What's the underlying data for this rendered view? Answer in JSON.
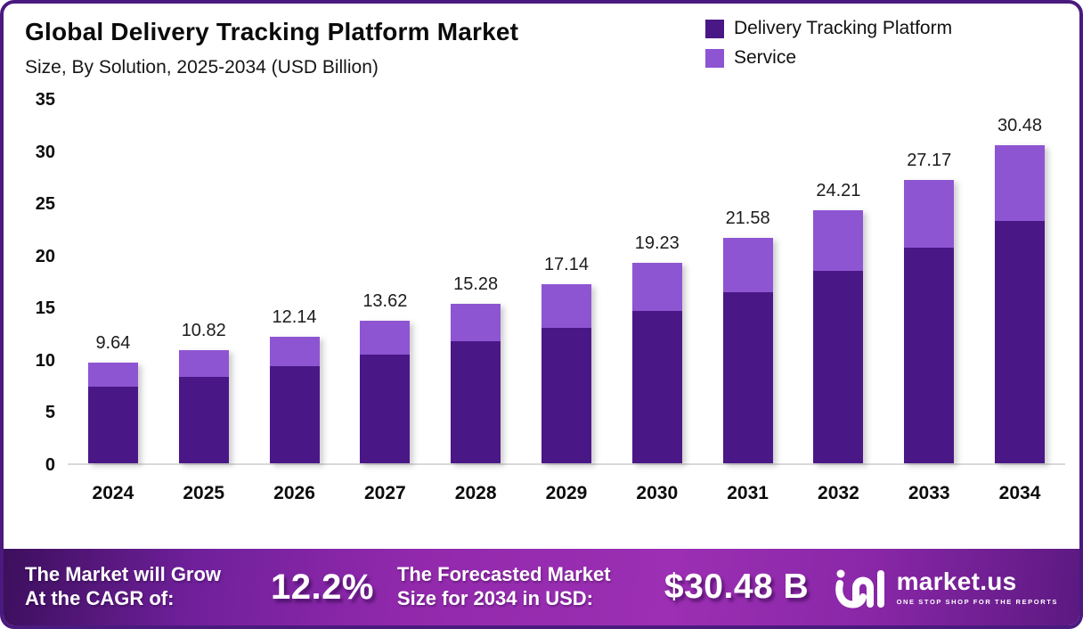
{
  "header": {
    "title": "Global Delivery Tracking Platform Market",
    "subtitle": "Size, By Solution, 2025-2034 (USD Billion)"
  },
  "legend": {
    "items": [
      {
        "label": "Delivery Tracking Platform",
        "color": "#4A1787"
      },
      {
        "label": "Service",
        "color": "#8E55D2"
      }
    ]
  },
  "chart_data": {
    "type": "bar",
    "stacked": true,
    "title": "Global Delivery Tracking Platform Market Size, By Solution, 2025-2034 (USD Billion)",
    "categories": [
      "2024",
      "2025",
      "2026",
      "2027",
      "2028",
      "2029",
      "2030",
      "2031",
      "2032",
      "2033",
      "2034"
    ],
    "series": [
      {
        "name": "Delivery Tracking Platform",
        "color": "#4A1787",
        "values": [
          7.35,
          8.3,
          9.3,
          10.42,
          11.68,
          13.0,
          14.62,
          16.38,
          18.4,
          20.62,
          23.22
        ]
      },
      {
        "name": "Service",
        "color": "#8E55D2",
        "values": [
          2.29,
          2.52,
          2.84,
          3.2,
          3.6,
          4.14,
          4.61,
          5.2,
          5.81,
          6.55,
          7.26
        ]
      }
    ],
    "totals": [
      9.64,
      10.82,
      12.14,
      13.62,
      15.28,
      17.14,
      19.23,
      21.58,
      24.21,
      27.17,
      30.48
    ],
    "total_labels": [
      "9.64",
      "10.82",
      "12.14",
      "13.62",
      "15.28",
      "17.14",
      "19.23",
      "21.58",
      "24.21",
      "27.17",
      "30.48"
    ],
    "xlabel": "",
    "ylabel": "",
    "ylim": [
      0,
      35
    ],
    "yticks": [
      35,
      30,
      25,
      20,
      15,
      10,
      5,
      0
    ],
    "grid": false,
    "legend_position": "top-right",
    "axis_line_color": "#d9d9d9"
  },
  "footer": {
    "cagr_label_line1": "The Market will Grow",
    "cagr_label_line2": "At the CAGR of:",
    "cagr_value": "12.2%",
    "forecast_label_line1": "The Forecasted Market",
    "forecast_label_line2": "Size for 2034 in USD:",
    "forecast_value": "$30.48 B",
    "logo": {
      "name": "market.us",
      "tagline": "ONE STOP SHOP FOR THE REPORTS"
    },
    "gradient": [
      "#3C0F5D",
      "#9C2FB3",
      "#5C1981"
    ]
  }
}
